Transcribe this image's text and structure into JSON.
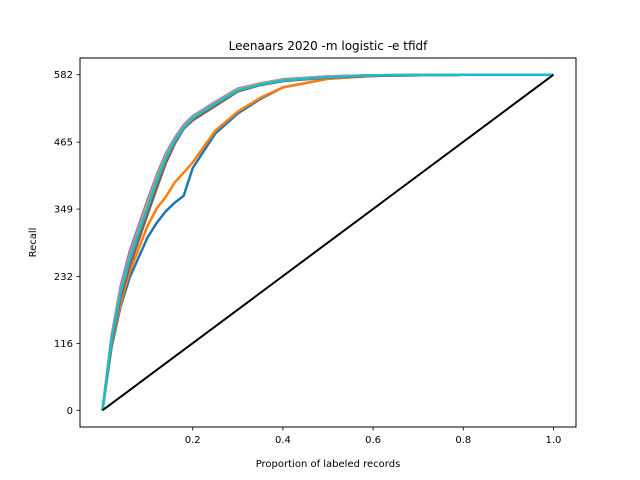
{
  "chart_data": {
    "type": "line",
    "title": "Leenaars 2020 -m logistic -e tfidf",
    "xlabel": "Proportion of labeled records",
    "ylabel": "Recall",
    "xlim": [
      -0.05,
      1.05
    ],
    "ylim": [
      -29,
      611
    ],
    "x_ticks": [
      {
        "value": 0.2,
        "label": "0.2"
      },
      {
        "value": 0.4,
        "label": "0.4"
      },
      {
        "value": 0.6,
        "label": "0.6"
      },
      {
        "value": 0.8,
        "label": "0.8"
      },
      {
        "value": 1.0,
        "label": "1.0"
      }
    ],
    "y_ticks": [
      {
        "value": 0,
        "label": "0"
      },
      {
        "value": 116,
        "label": "116"
      },
      {
        "value": 232,
        "label": "232"
      },
      {
        "value": 349,
        "label": "349"
      },
      {
        "value": 465,
        "label": "465"
      },
      {
        "value": 582,
        "label": "582"
      }
    ],
    "grid": false,
    "series": [
      {
        "color": "#1f77b4",
        "x": [
          0,
          0.02,
          0.04,
          0.06,
          0.08,
          0.1,
          0.12,
          0.14,
          0.16,
          0.18,
          0.2,
          0.25,
          0.3,
          0.35,
          0.4,
          0.5,
          0.6,
          0.8,
          1.0
        ],
        "y": [
          0,
          110,
          180,
          230,
          265,
          300,
          325,
          345,
          360,
          372,
          420,
          480,
          515,
          540,
          560,
          575,
          580,
          582,
          582
        ]
      },
      {
        "color": "#ff7f0e",
        "x": [
          0,
          0.02,
          0.04,
          0.06,
          0.08,
          0.1,
          0.12,
          0.14,
          0.16,
          0.18,
          0.2,
          0.25,
          0.3,
          0.35,
          0.4,
          0.5,
          0.6,
          0.8,
          1.0
        ],
        "y": [
          0,
          115,
          185,
          240,
          280,
          320,
          350,
          370,
          395,
          412,
          430,
          485,
          518,
          542,
          560,
          575,
          580,
          582,
          582
        ]
      },
      {
        "color": "#2ca02c",
        "x": [
          0,
          0.02,
          0.04,
          0.06,
          0.08,
          0.1,
          0.12,
          0.14,
          0.16,
          0.18,
          0.2,
          0.25,
          0.3,
          0.35,
          0.4,
          0.5,
          0.6,
          0.8,
          1.0
        ],
        "y": [
          0,
          120,
          200,
          255,
          300,
          345,
          390,
          430,
          465,
          490,
          505,
          530,
          555,
          565,
          572,
          578,
          581,
          582,
          582
        ]
      },
      {
        "color": "#d62728",
        "x": [
          0,
          0.02,
          0.04,
          0.06,
          0.08,
          0.1,
          0.12,
          0.14,
          0.16,
          0.18,
          0.2,
          0.25,
          0.3,
          0.35,
          0.4,
          0.5,
          0.6,
          0.8,
          1.0
        ],
        "y": [
          0,
          125,
          205,
          260,
          310,
          355,
          400,
          440,
          470,
          492,
          507,
          532,
          556,
          566,
          573,
          578,
          581,
          582,
          582
        ]
      },
      {
        "color": "#9467bd",
        "x": [
          0,
          0.02,
          0.04,
          0.06,
          0.08,
          0.1,
          0.12,
          0.14,
          0.16,
          0.18,
          0.2,
          0.25,
          0.3,
          0.35,
          0.4,
          0.5,
          0.6,
          0.8,
          1.0
        ],
        "y": [
          0,
          130,
          215,
          275,
          320,
          365,
          408,
          445,
          472,
          495,
          510,
          535,
          558,
          567,
          574,
          579,
          581,
          582,
          582
        ]
      },
      {
        "color": "#8c564b",
        "x": [
          0,
          0.02,
          0.04,
          0.06,
          0.08,
          0.1,
          0.12,
          0.14,
          0.16,
          0.18,
          0.2,
          0.25,
          0.3,
          0.35,
          0.4,
          0.5,
          0.6,
          0.8,
          1.0
        ],
        "y": [
          0,
          118,
          195,
          250,
          295,
          340,
          385,
          428,
          462,
          488,
          503,
          528,
          553,
          564,
          571,
          577,
          580,
          582,
          582
        ]
      },
      {
        "color": "#e377c2",
        "x": [
          0,
          0.02,
          0.04,
          0.06,
          0.08,
          0.1,
          0.12,
          0.14,
          0.16,
          0.18,
          0.2,
          0.25,
          0.3,
          0.35,
          0.4,
          0.5,
          0.6,
          0.8,
          1.0
        ],
        "y": [
          0,
          128,
          210,
          268,
          315,
          360,
          404,
          442,
          470,
          493,
          509,
          534,
          557,
          566,
          573,
          579,
          581,
          582,
          582
        ]
      },
      {
        "color": "#7f7f7f",
        "x": [
          0,
          0.02,
          0.04,
          0.06,
          0.08,
          0.1,
          0.12,
          0.14,
          0.16,
          0.18,
          0.2,
          0.25,
          0.3,
          0.35,
          0.4,
          0.5,
          0.6,
          0.8,
          1.0
        ],
        "y": [
          0,
          122,
          202,
          258,
          305,
          350,
          395,
          435,
          466,
          490,
          506,
          531,
          555,
          565,
          572,
          578,
          581,
          582,
          582
        ]
      },
      {
        "color": "#bcbd22",
        "x": [
          0,
          0.02,
          0.04,
          0.06,
          0.08,
          0.1,
          0.12,
          0.14,
          0.16,
          0.18,
          0.2,
          0.25,
          0.3,
          0.35,
          0.4,
          0.5,
          0.6,
          0.8,
          1.0
        ],
        "y": [
          0,
          126,
          207,
          264,
          312,
          357,
          402,
          440,
          468,
          491,
          508,
          533,
          556,
          566,
          573,
          578,
          581,
          582,
          582
        ]
      },
      {
        "color": "#17becf",
        "x": [
          0,
          0.02,
          0.04,
          0.06,
          0.08,
          0.1,
          0.12,
          0.14,
          0.16,
          0.18,
          0.2,
          0.25,
          0.3,
          0.35,
          0.4,
          0.5,
          0.6,
          0.8,
          1.0
        ],
        "y": [
          0,
          124,
          204,
          262,
          308,
          352,
          398,
          437,
          467,
          490,
          507,
          532,
          555,
          565,
          572,
          578,
          581,
          582,
          582
        ]
      },
      {
        "color": "#000000",
        "x": [
          0,
          1.0
        ],
        "y": [
          0,
          582
        ]
      }
    ]
  }
}
